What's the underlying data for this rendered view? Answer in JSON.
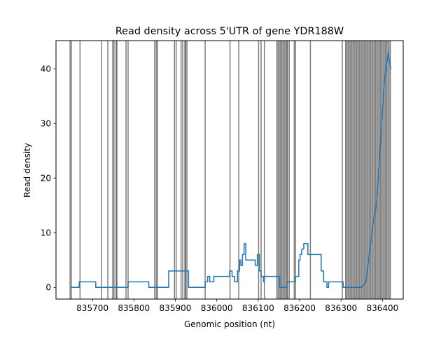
{
  "chart_data": {
    "type": "line",
    "title": "Read density across 5'UTR of gene YDR188W",
    "xlabel": "Genomic position (nt)",
    "ylabel": "Read density",
    "xlim": [
      835612,
      836450
    ],
    "ylim": [
      -2.15,
      45.15
    ],
    "x_ticks": [
      835700,
      835800,
      835900,
      836000,
      836100,
      836200,
      836300,
      836400
    ],
    "x_tick_labels": [
      "835700",
      "835800",
      "835900",
      "836000",
      "836100",
      "836200",
      "836300",
      "836400"
    ],
    "y_ticks": [
      0,
      10,
      20,
      30,
      40
    ],
    "y_tick_labels": [
      "0",
      "10",
      "20",
      "30",
      "40"
    ],
    "grid": false,
    "legend": "none",
    "series_color": "#1f77b4",
    "vline_color": "#000000",
    "series": [
      {
        "x": [
          835648,
          835668,
          835668,
          835708,
          835708,
          835786,
          835786,
          835836,
          835836,
          835884,
          835884,
          835932,
          835932,
          835972,
          835972,
          835978,
          835978,
          835983,
          835983,
          835993,
          835993,
          836031,
          836031,
          836037,
          836037,
          836043,
          836043,
          836050,
          836050,
          836055,
          836055,
          836058,
          836058,
          836062,
          836062,
          836066,
          836066,
          836070,
          836070,
          836093,
          836093,
          836098,
          836098,
          836103,
          836103,
          836107,
          836107,
          836113,
          836113,
          836115,
          836115,
          836152,
          836152,
          836170,
          836170,
          836190,
          836190,
          836198,
          836198,
          836201,
          836201,
          836205,
          836205,
          836210,
          836210,
          836214,
          836214,
          836220,
          836220,
          836252,
          836252,
          836258,
          836258,
          836266,
          836266,
          836270,
          836270,
          836305,
          836305,
          836350,
          836360,
          836378,
          836385,
          836392,
          836398,
          836405,
          836410,
          836414,
          836420
        ],
        "y": [
          0,
          0,
          1,
          1,
          0,
          0,
          1,
          1,
          0,
          0,
          3,
          3,
          0,
          0,
          1,
          1,
          2,
          2,
          1,
          1,
          2,
          2,
          3,
          3,
          2,
          2,
          1,
          1,
          3,
          3,
          5,
          5,
          4,
          4,
          6,
          6,
          8,
          8,
          5,
          5,
          4,
          4,
          6,
          6,
          3,
          3,
          2,
          2,
          1,
          1,
          2,
          2,
          0,
          0,
          1,
          1,
          2,
          2,
          5,
          5,
          6,
          6,
          7,
          7,
          8,
          8,
          8,
          8,
          6,
          6,
          3,
          3,
          1,
          1,
          0,
          0,
          1,
          1,
          0,
          0,
          1,
          12,
          15,
          22,
          30,
          38,
          41,
          43,
          40
        ]
      }
    ],
    "vlines": [
      835646,
      835649,
      835670,
      835722,
      835737,
      835749,
      835752,
      835757,
      835759,
      835781,
      835786,
      835850,
      835854,
      835857,
      835898,
      835902,
      835914,
      835918,
      835923,
      835925,
      835928,
      835972,
      836032,
      836053,
      836101,
      836107,
      836115,
      836145,
      836148,
      836151,
      836154,
      836157,
      836160,
      836163,
      836166,
      836169,
      836171,
      836175,
      836187,
      836190,
      836226,
      836303,
      836311,
      836314,
      836317,
      836320,
      836323,
      836326,
      836329,
      836332,
      836335,
      836338,
      836341,
      836344,
      836347,
      836350,
      836353,
      836356,
      836359,
      836362,
      836365,
      836368,
      836371,
      836374,
      836377,
      836380,
      836383,
      836386,
      836389,
      836392,
      836395,
      836398,
      836401,
      836404,
      836407,
      836410,
      836413,
      836416,
      836419
    ]
  }
}
